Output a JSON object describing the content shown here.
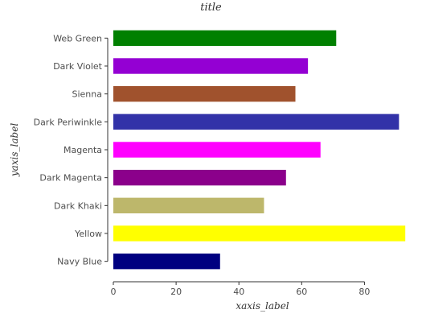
{
  "chart_data": {
    "type": "bar",
    "orientation": "horizontal",
    "title": "title",
    "xlabel": "xaxis_label",
    "ylabel": "yaxis_label",
    "xlim": [
      0,
      95
    ],
    "xticks": [
      0,
      20,
      40,
      60,
      80
    ],
    "grid": false,
    "categories": [
      "Navy Blue",
      "Yellow",
      "Dark Khaki",
      "Dark Magenta",
      "Magenta",
      "Dark Periwinkle",
      "Sienna",
      "Dark Violet",
      "Web Green"
    ],
    "values": [
      34,
      93,
      48,
      55,
      66,
      91,
      58,
      62,
      71
    ],
    "colors": [
      "#000080",
      "#ffff00",
      "#bdb76b",
      "#8b008b",
      "#ff00ff",
      "#3232a8",
      "#a0522d",
      "#9400d3",
      "#008000"
    ]
  }
}
